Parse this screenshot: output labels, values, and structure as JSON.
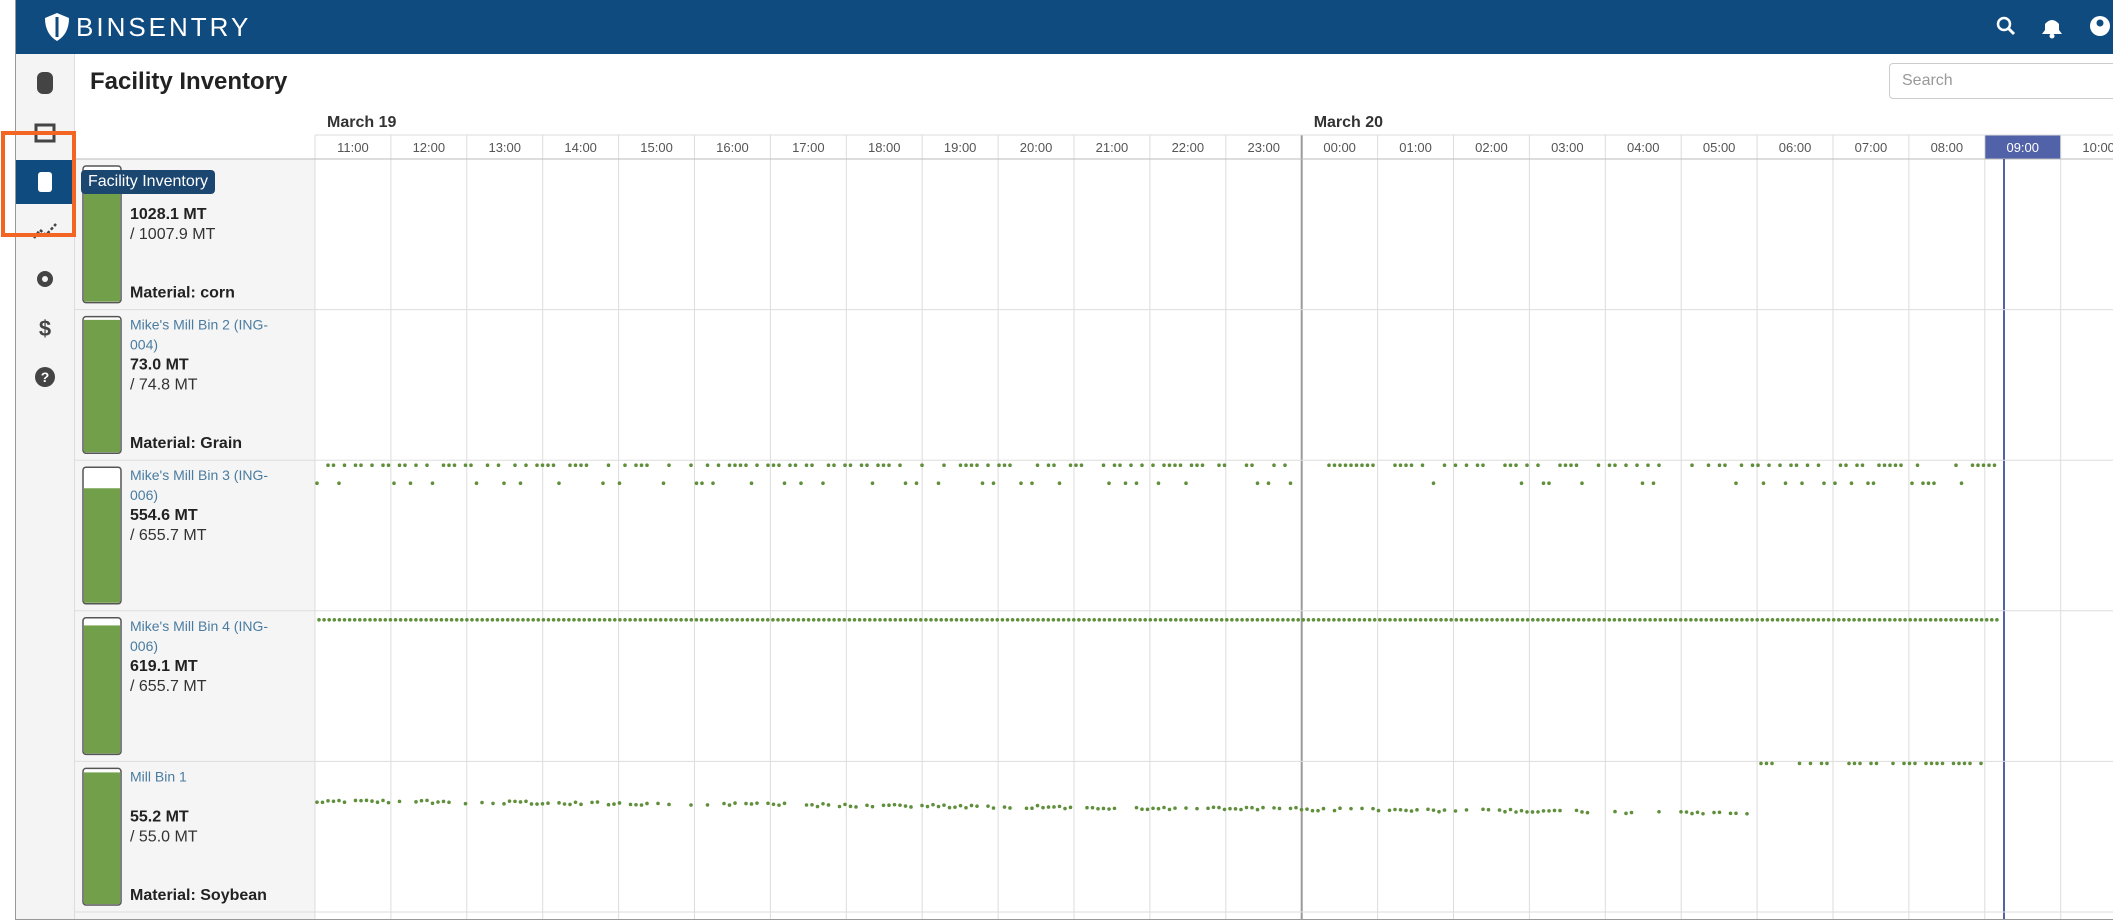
{
  "header": {
    "brand": "BINSENTRY"
  },
  "page": {
    "title": "Facility Inventory",
    "search_placeholder": "Search"
  },
  "tooltip": "Facility Inventory",
  "timeline": {
    "dates": [
      "March 19",
      "March 20"
    ],
    "hours": [
      "11:00",
      "12:00",
      "13:00",
      "14:00",
      "15:00",
      "16:00",
      "17:00",
      "18:00",
      "19:00",
      "20:00",
      "21:00",
      "22:00",
      "23:00",
      "00:00",
      "01:00",
      "02:00",
      "03:00",
      "04:00",
      "05:00",
      "06:00",
      "07:00",
      "08:00",
      "09:00",
      "10:00"
    ]
  },
  "bins": [
    {
      "amount": "1028.1 MT",
      "capacity": "/ 1007.9 MT",
      "material": "Material: corn"
    },
    {
      "name": "Mike's Mill Bin 2 (ING-004)",
      "amount": "73.0 MT",
      "capacity": "/ 74.8 MT",
      "material": "Material: Grain"
    },
    {
      "name": "Mike's Mill Bin 3 (ING-006)",
      "amount": "554.6 MT",
      "capacity": "/ 655.7 MT"
    },
    {
      "name": "Mike's Mill Bin 4 (ING-006)",
      "amount": "619.1 MT",
      "capacity": "/ 655.7 MT"
    },
    {
      "name": "Mill Bin 1",
      "amount": "55.2 MT",
      "capacity": "/ 55.0 MT",
      "material": "Material: Soybean"
    }
  ]
}
